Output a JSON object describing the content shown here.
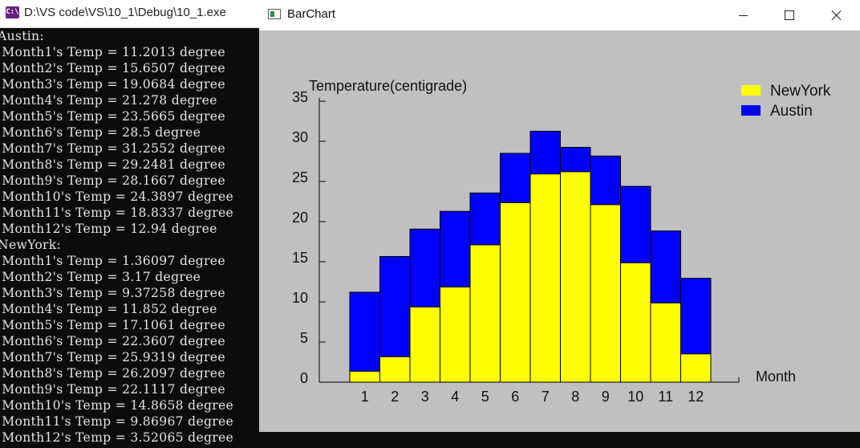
{
  "console": {
    "title": "D:\\VS code\\VS\\10_1\\Debug\\10_1.exe",
    "icon": "console-app-icon",
    "lines": [
      "Austin:",
      " Month1's Temp = 11.2013 degree",
      " Month2's Temp = 15.6507 degree",
      " Month3's Temp = 19.0684 degree",
      " Month4's Temp = 21.278 degree",
      " Month5's Temp = 23.5665 degree",
      " Month6's Temp = 28.5 degree",
      " Month7's Temp = 31.2552 degree",
      " Month8's Temp = 29.2481 degree",
      " Month9's Temp = 28.1667 degree",
      " Month10's Temp = 24.3897 degree",
      " Month11's Temp = 18.8337 degree",
      " Month12's Temp = 12.94 degree",
      "NewYork:",
      " Month1's Temp = 1.36097 degree",
      " Month2's Temp = 3.17 degree",
      " Month3's Temp = 9.37258 degree",
      " Month4's Temp = 11.852 degree",
      " Month5's Temp = 17.1061 degree",
      " Month6's Temp = 22.3607 degree",
      " Month7's Temp = 25.9319 degree",
      " Month8's Temp = 26.2097 degree",
      " Month9's Temp = 22.1117 degree",
      " Month10's Temp = 14.8658 degree",
      " Month11's Temp = 9.86967 degree",
      " Month12's Temp = 3.52065 degree"
    ]
  },
  "window": {
    "title": "BarChart",
    "icon": "window-app-icon",
    "minimize_icon": "minimize-icon",
    "maximize_icon": "maximize-icon",
    "close_icon": "close-icon"
  },
  "chart_data": {
    "type": "bar",
    "title": "",
    "ylabel": "Temperature(centigrade)",
    "xlabel": "Month",
    "categories": [
      "1",
      "2",
      "3",
      "4",
      "5",
      "6",
      "7",
      "8",
      "9",
      "10",
      "11",
      "12"
    ],
    "yticks": [
      "0",
      "5",
      "10",
      "15",
      "20",
      "25",
      "30",
      "35"
    ],
    "ylim": [
      0,
      35
    ],
    "overlapping": true,
    "legend_position": "top-right",
    "background": "#c0c0c0",
    "series": [
      {
        "name": "NewYork",
        "color": "#ffff00",
        "values": [
          1.36097,
          3.17,
          9.37258,
          11.852,
          17.1061,
          22.3607,
          25.9319,
          26.2097,
          22.1117,
          14.8658,
          9.86967,
          3.52065
        ]
      },
      {
        "name": "Austin",
        "color": "#0000ff",
        "values": [
          11.2013,
          15.6507,
          19.0684,
          21.278,
          23.5665,
          28.5,
          31.2552,
          29.2481,
          28.1667,
          24.3897,
          18.8337,
          12.94
        ]
      }
    ]
  }
}
